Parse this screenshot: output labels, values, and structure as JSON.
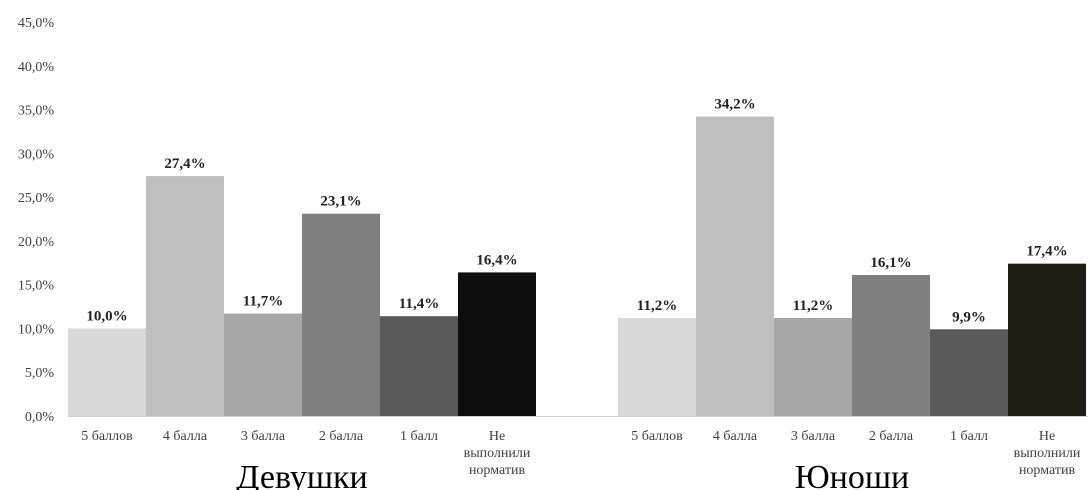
{
  "chart_data": {
    "type": "bar",
    "ylim": [
      0,
      45
    ],
    "y_tick_step": 5,
    "y_tick_labels": [
      "0,0%",
      "5,0%",
      "10,0%",
      "15,0%",
      "20,0%",
      "25,0%",
      "30,0%",
      "35,0%",
      "40,0%",
      "45,0%"
    ],
    "grid": false,
    "legend": "none",
    "colors": [
      "#d9d9d9",
      "#bfbfbf",
      "#a6a6a6",
      "#7f7f7f",
      "#595959",
      "#0d0d0d"
    ],
    "groups": [
      {
        "name": "Девушки",
        "categories": [
          "5 баллов",
          "4 балла",
          "3 балла",
          "2 балла",
          "1 балл",
          "Не выполнили норматив"
        ],
        "values": [
          10.0,
          27.4,
          11.7,
          23.1,
          11.4,
          16.4
        ],
        "labels": [
          "10,0%",
          "27,4%",
          "11,7%",
          "23,1%",
          "11,4%",
          "16,4%"
        ]
      },
      {
        "name": "Юноши",
        "categories": [
          "5 баллов",
          "4 балла",
          "3 балла",
          "2 балла",
          "1 балл",
          "Не выполнили норматив"
        ],
        "values": [
          11.2,
          34.2,
          11.2,
          16.1,
          9.9,
          17.4
        ],
        "labels": [
          "11,2%",
          "34,2%",
          "11,2%",
          "16,1%",
          "9,9%",
          "17,4%"
        ],
        "colors_override": [
          "#d9d9d9",
          "#bfbfbf",
          "#a6a6a6",
          "#7f7f7f",
          "#595959",
          "#1f1d14"
        ]
      }
    ]
  }
}
